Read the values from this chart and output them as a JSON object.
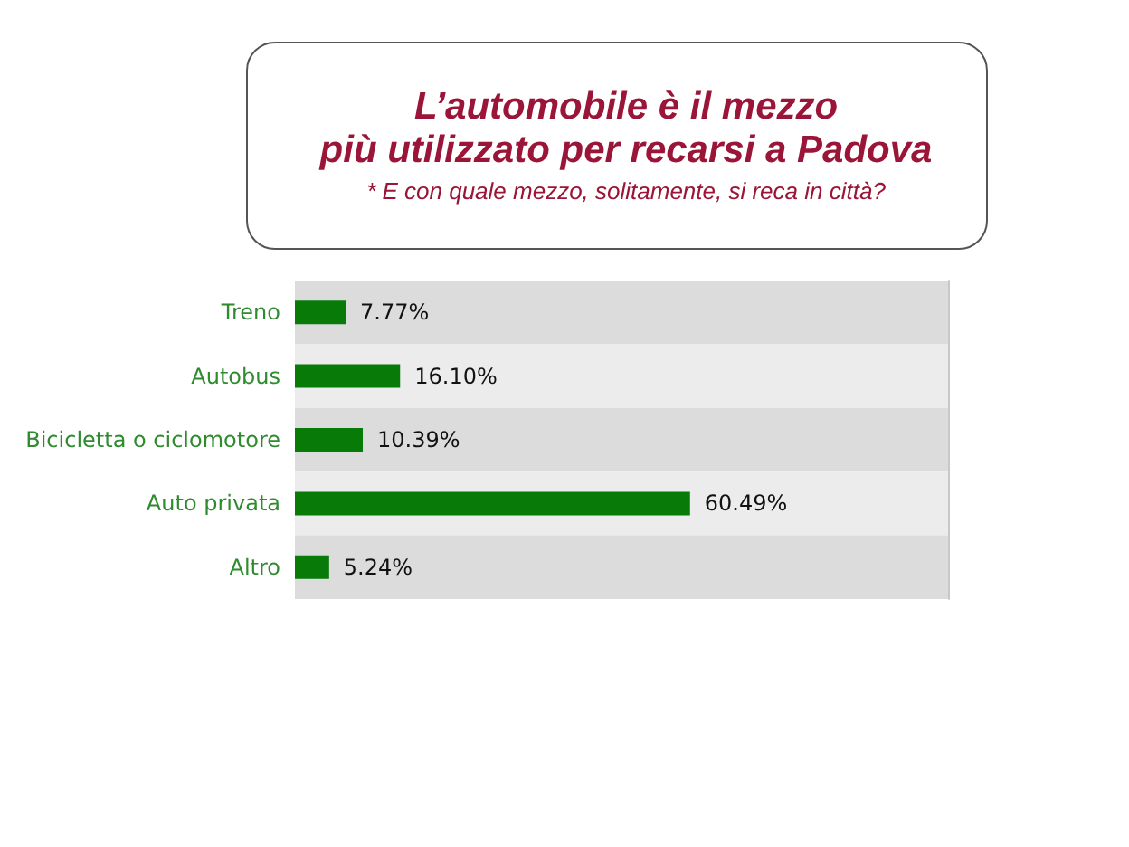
{
  "chart_data": {
    "type": "bar",
    "orientation": "horizontal",
    "title": "L’automobile è il mezzo\npiù utilizzato per recarsi a Padova",
    "subtitle": "* E con quale mezzo, solitamente, si reca in città?",
    "categories": [
      "Treno",
      "Autobus",
      "Bicicletta o ciclomotore",
      "Auto privata",
      "Altro"
    ],
    "values": [
      7.77,
      16.1,
      10.39,
      60.49,
      5.24
    ],
    "value_labels": [
      "7.77%",
      "16.10%",
      "10.39%",
      "60.49%",
      "5.24%"
    ],
    "color": "#087a08"
  }
}
